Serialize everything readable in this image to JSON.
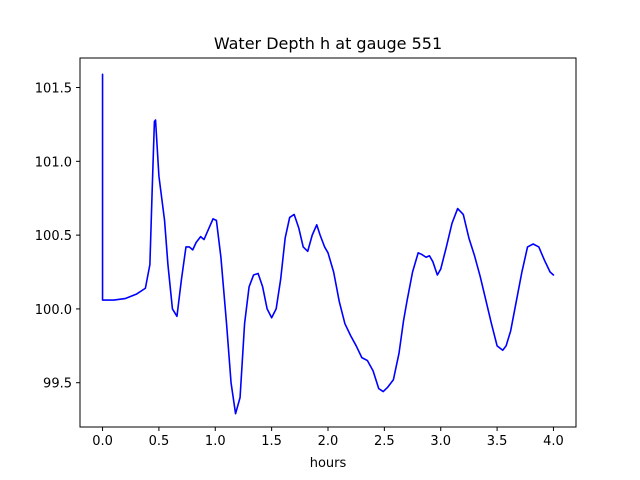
{
  "chart_data": {
    "type": "line",
    "title": "Water Depth h at gauge 551",
    "xlabel": "hours",
    "ylabel": "",
    "xlim": [
      -0.2,
      4.2
    ],
    "ylim": [
      99.2,
      101.7
    ],
    "xticks": [
      "0.0",
      "0.5",
      "1.0",
      "1.5",
      "2.0",
      "2.5",
      "3.0",
      "3.5",
      "4.0"
    ],
    "yticks": [
      "99.5",
      "100.0",
      "100.5",
      "101.0",
      "101.5"
    ],
    "grid": false,
    "legend": "none",
    "series": [
      {
        "color": "#0000ff",
        "x": [
          0.0,
          0.0,
          0.0,
          0.1,
          0.2,
          0.3,
          0.38,
          0.42,
          0.44,
          0.46,
          0.47,
          0.5,
          0.55,
          0.58,
          0.62,
          0.66,
          0.7,
          0.74,
          0.77,
          0.8,
          0.83,
          0.87,
          0.9,
          0.94,
          0.98,
          1.01,
          1.05,
          1.1,
          1.14,
          1.18,
          1.22,
          1.26,
          1.3,
          1.34,
          1.38,
          1.42,
          1.46,
          1.5,
          1.54,
          1.58,
          1.62,
          1.66,
          1.7,
          1.74,
          1.78,
          1.82,
          1.86,
          1.9,
          1.93,
          1.97,
          2.0,
          2.05,
          2.1,
          2.15,
          2.2,
          2.25,
          2.3,
          2.35,
          2.4,
          2.45,
          2.49,
          2.53,
          2.58,
          2.63,
          2.67,
          2.7,
          2.75,
          2.8,
          2.83,
          2.87,
          2.9,
          2.93,
          2.97,
          3.0,
          3.05,
          3.1,
          3.15,
          3.2,
          3.25,
          3.3,
          3.35,
          3.4,
          3.45,
          3.5,
          3.55,
          3.58,
          3.62,
          3.67,
          3.72,
          3.77,
          3.82,
          3.87,
          3.92,
          3.97,
          4.0
        ],
        "y": [
          101.59,
          101.0,
          100.06,
          100.06,
          100.07,
          100.1,
          100.14,
          100.3,
          100.8,
          101.27,
          101.28,
          100.9,
          100.6,
          100.3,
          100.0,
          99.95,
          100.2,
          100.42,
          100.42,
          100.4,
          100.45,
          100.49,
          100.47,
          100.54,
          100.61,
          100.6,
          100.35,
          99.9,
          99.5,
          99.29,
          99.4,
          99.9,
          100.15,
          100.23,
          100.24,
          100.15,
          100.0,
          99.94,
          100.0,
          100.2,
          100.48,
          100.62,
          100.64,
          100.55,
          100.42,
          100.39,
          100.5,
          100.57,
          100.5,
          100.42,
          100.38,
          100.25,
          100.05,
          99.9,
          99.82,
          99.75,
          99.67,
          99.65,
          99.58,
          99.46,
          99.44,
          99.47,
          99.52,
          99.7,
          99.92,
          100.05,
          100.25,
          100.38,
          100.37,
          100.35,
          100.36,
          100.32,
          100.23,
          100.27,
          100.42,
          100.58,
          100.68,
          100.64,
          100.48,
          100.36,
          100.22,
          100.06,
          99.9,
          99.75,
          99.72,
          99.75,
          99.85,
          100.05,
          100.25,
          100.42,
          100.44,
          100.42,
          100.33,
          100.25,
          100.23
        ]
      }
    ]
  }
}
